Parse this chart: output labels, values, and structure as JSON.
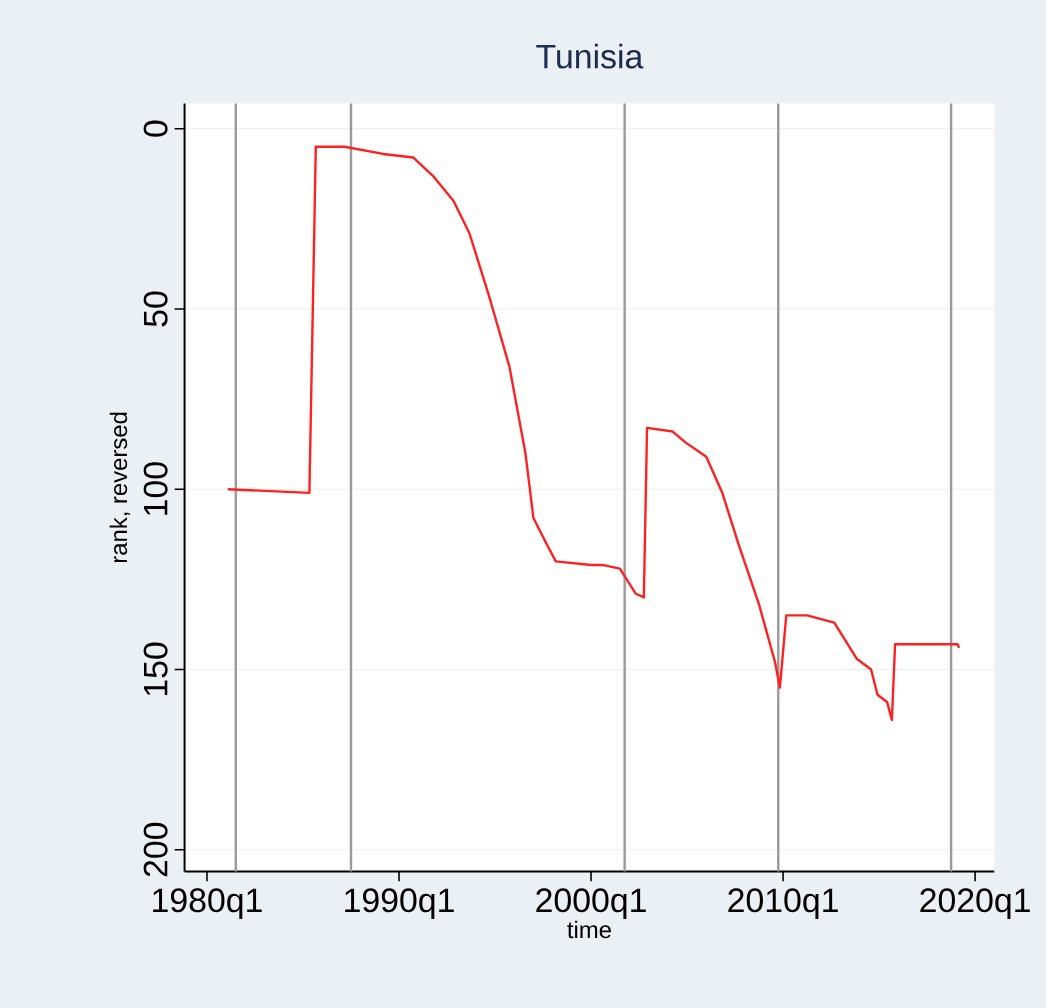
{
  "chart_data": {
    "type": "line",
    "title": "Tunisia",
    "xlabel": "time",
    "ylabel": "rank, reversed",
    "x": [
      "1981-02",
      "1985-05",
      "1985-09",
      "1987-03",
      "1989-03",
      "1990-10",
      "1991-10",
      "1992-11",
      "1993-09",
      "1994-09",
      "1995-10",
      "1996-08",
      "1997-01",
      "1997-09",
      "1998-03",
      "2000-01",
      "2000-08",
      "2001-07",
      "2002-05",
      "2002-10",
      "2002-12",
      "2004-04",
      "2004-12",
      "2006-01",
      "2006-11",
      "2007-09",
      "2008-10",
      "2009-08",
      "2009-11",
      "2010-03",
      "2011-04",
      "2012-09",
      "2013-11",
      "2014-08",
      "2014-12",
      "2015-06",
      "2015-09",
      "2015-11",
      "2019-02",
      "2019-03"
    ],
    "series": [
      {
        "color": "#ff2020",
        "values": [
          100,
          101,
          5,
          5,
          7,
          8,
          13,
          20,
          29,
          46,
          66,
          90,
          108,
          115,
          120,
          121,
          121,
          122,
          129,
          130,
          83,
          84,
          87,
          91,
          101,
          115,
          132,
          148,
          155,
          135,
          135,
          137,
          147,
          150,
          157,
          159,
          164,
          143,
          143,
          144
        ]
      }
    ],
    "xlim": [
      "1978-11",
      "2021-01"
    ],
    "ylim": [
      206,
      -7
    ],
    "xticks": [
      {
        "value": "1980-01",
        "label": "1980q1"
      },
      {
        "value": "1990-01",
        "label": "1990q1"
      },
      {
        "value": "2000-01",
        "label": "2000q1"
      },
      {
        "value": "2010-01",
        "label": "2010q1"
      },
      {
        "value": "2020-01",
        "label": "2020q1"
      }
    ],
    "yticks": [
      0,
      50,
      100,
      150,
      200
    ],
    "ref_lines": [
      {
        "axis": "x",
        "value": "1981-07",
        "color": "#9a9a9a"
      },
      {
        "axis": "x",
        "value": "1987-07",
        "color": "#9a9a9a"
      },
      {
        "axis": "x",
        "value": "2001-10",
        "color": "#9a9a9a"
      },
      {
        "axis": "x",
        "value": "2009-10",
        "color": "#9a9a9a"
      },
      {
        "axis": "x",
        "value": "2018-10",
        "color": "#9a9a9a"
      }
    ],
    "grid": "y"
  }
}
